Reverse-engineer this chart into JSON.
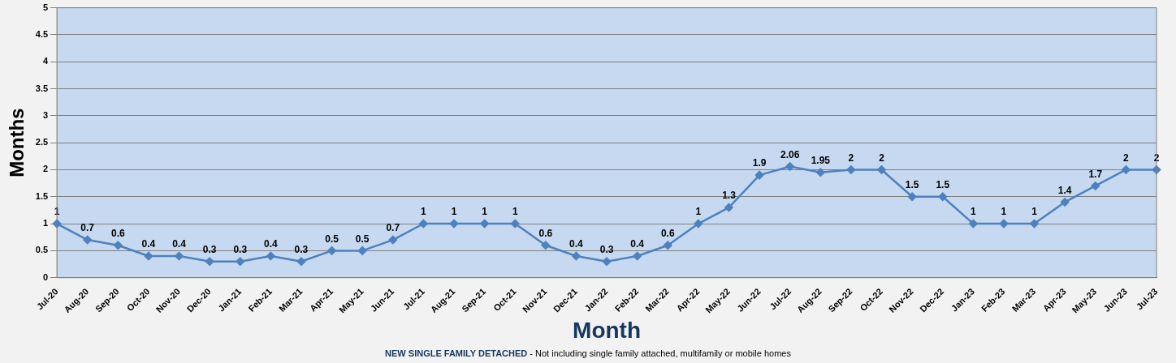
{
  "chart_data": {
    "type": "line",
    "xlabel": "Month",
    "ylabel": "Months",
    "categories": [
      "Jul-20",
      "Aug-20",
      "Sep-20",
      "Oct-20",
      "Nov-20",
      "Dec-20",
      "Jan-21",
      "Feb-21",
      "Mar-21",
      "Apr-21",
      "May-21",
      "Jun-21",
      "Jul-21",
      "Aug-21",
      "Sep-21",
      "Oct-21",
      "Nov-21",
      "Dec-21",
      "Jan-22",
      "Feb-22",
      "Mar-22",
      "Apr-22",
      "May-22",
      "Jun-22",
      "Jul-22",
      "Aug-22",
      "Sep-22",
      "Oct-22",
      "Nov-22",
      "Dec-22",
      "Jan-23",
      "Feb-23",
      "Mar-23",
      "Apr-23",
      "May-23",
      "Jun-23",
      "Jul-23"
    ],
    "series": [
      {
        "color": "#4f81bd",
        "values": [
          1,
          0.7,
          0.6,
          0.4,
          0.4,
          0.3,
          0.3,
          0.4,
          0.3,
          0.5,
          0.5,
          0.7,
          1,
          1,
          1,
          1,
          0.6,
          0.4,
          0.3,
          0.4,
          0.6,
          1,
          1.3,
          1.9,
          2.06,
          1.95,
          2,
          2,
          1.5,
          1.5,
          1,
          1,
          1,
          1.4,
          1.7,
          2,
          2
        ]
      }
    ],
    "ylim": [
      0,
      5
    ],
    "yticks": [
      0,
      0.5,
      1,
      1.5,
      2,
      2.5,
      3,
      3.5,
      4,
      4.5,
      5
    ],
    "grid": "y",
    "legend": false,
    "marker": "diamond",
    "line_style": "solid",
    "data_labels": true,
    "annotations": [
      "NEW SINGLE FAMILY DETACHED",
      "- Not including single family attached, multifamily or mobile homes"
    ]
  }
}
